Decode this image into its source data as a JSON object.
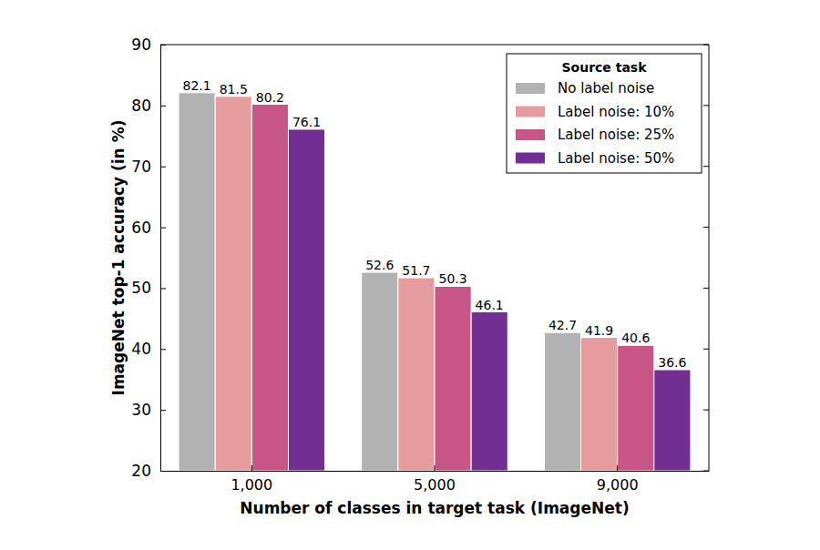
{
  "chart_data": {
    "type": "bar",
    "x_label": "Number of classes in target task (ImageNet)",
    "y_label": "ImageNet top-1 accuracy (in %)",
    "categories": [
      "1,000",
      "5,000",
      "9,000"
    ],
    "series": [
      {
        "name": "No label noise",
        "color": "#b2b2b2",
        "values": [
          82.1,
          52.6,
          42.7
        ]
      },
      {
        "name": "Label noise: 10%",
        "color": "#e69c9c",
        "values": [
          81.5,
          51.7,
          41.9
        ]
      },
      {
        "name": "Label noise: 25%",
        "color": "#c75687",
        "values": [
          80.2,
          50.3,
          40.6
        ]
      },
      {
        "name": "Label noise: 50%",
        "color": "#722e91",
        "values": [
          76.1,
          46.1,
          36.6
        ]
      }
    ],
    "ylim": [
      20,
      90
    ],
    "yticks": [
      20,
      30,
      40,
      50,
      60,
      70,
      80,
      90
    ],
    "data_labels": true,
    "legend": "upper right",
    "legend_title": "Source task",
    "grid": false
  }
}
